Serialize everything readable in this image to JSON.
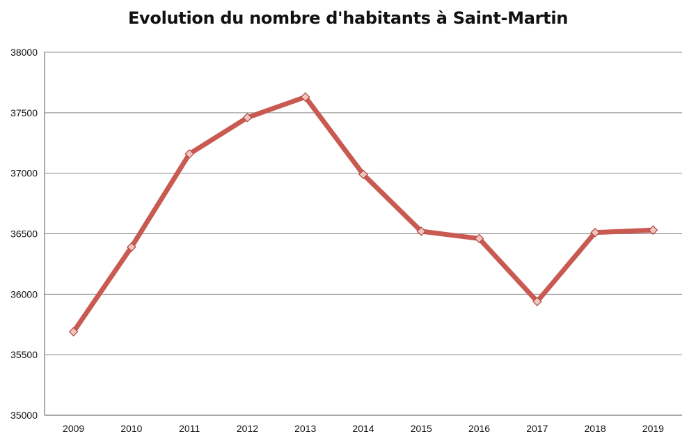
{
  "chart_data": {
    "type": "line",
    "title": "Evolution du nombre d'habitants à Saint-Martin",
    "categories": [
      "2009",
      "2010",
      "2011",
      "2012",
      "2013",
      "2014",
      "2015",
      "2016",
      "2017",
      "2018",
      "2019"
    ],
    "series": [
      {
        "values": [
          35690,
          36390,
          37160,
          37460,
          37630,
          36990,
          36520,
          36460,
          35940,
          36510,
          36530
        ],
        "color": "#c95a52",
        "marker": "diamond"
      }
    ],
    "y_ticks": [
      "35000",
      "35500",
      "36000",
      "36500",
      "37000",
      "37500",
      "38000"
    ],
    "ylim": [
      35000,
      38000
    ],
    "grid": true,
    "legend": "none"
  }
}
